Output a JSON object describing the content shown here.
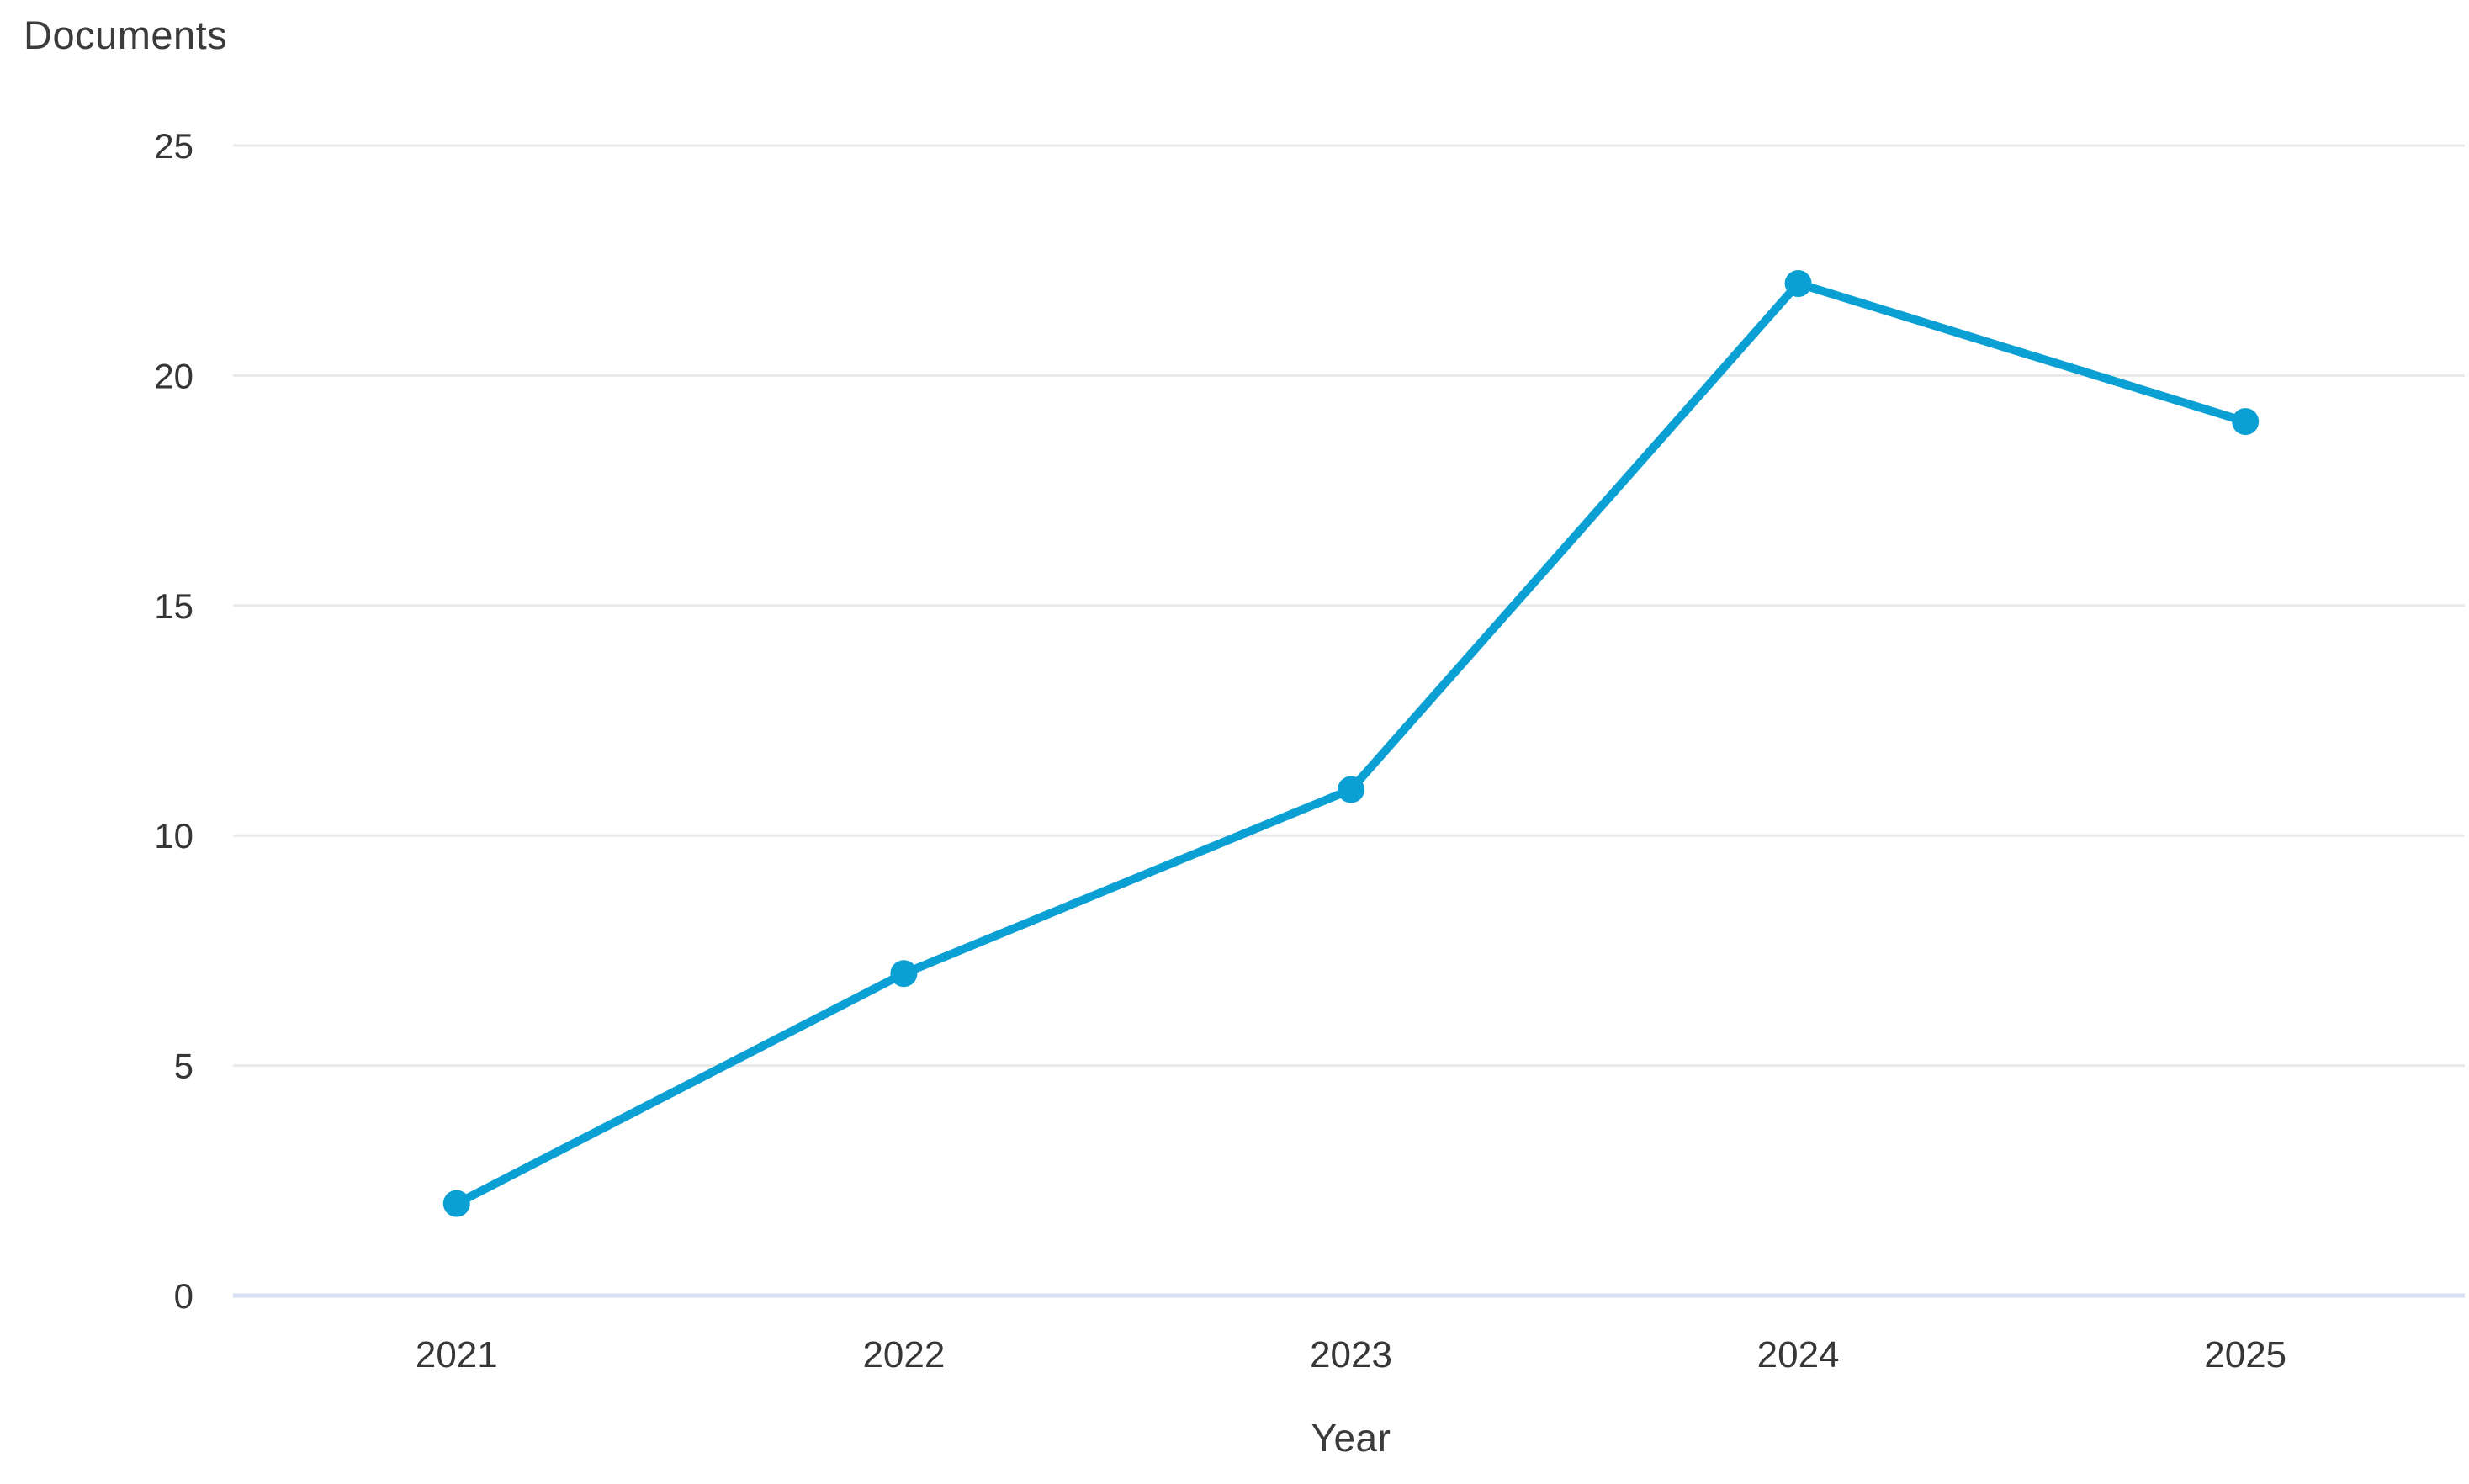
{
  "chart_data": {
    "type": "line",
    "title": "Documents",
    "xlabel": "Year",
    "ylabel": "Documents",
    "categories": [
      "2021",
      "2022",
      "2023",
      "2024",
      "2025"
    ],
    "series": [
      {
        "name": "Documents",
        "values": [
          2,
          7,
          11,
          22,
          19
        ]
      }
    ],
    "ylim": [
      0,
      25
    ],
    "yticks": [
      0,
      5,
      10,
      15,
      20,
      25
    ],
    "grid": "horizontal",
    "legend": "none",
    "colors": {
      "line": "#0aa0d4",
      "point": "#0aa0d4",
      "gridline": "#e8e8e8",
      "axis_line": "#d9dff2",
      "text": "#3b3b3b"
    }
  }
}
